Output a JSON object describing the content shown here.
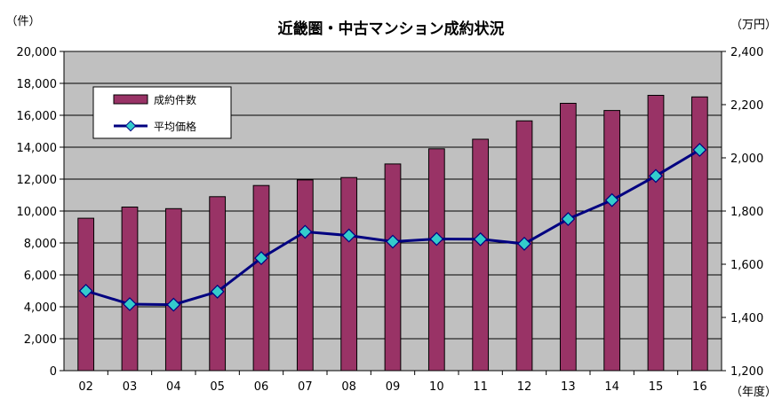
{
  "chart_data": {
    "type": "bar+line",
    "title": "近畿圏・中古マンション成約状況",
    "left_unit": "（件）",
    "right_unit": "（万円）",
    "x_unit": "（年度）",
    "categories": [
      "02",
      "03",
      "04",
      "05",
      "06",
      "07",
      "08",
      "09",
      "10",
      "11",
      "12",
      "13",
      "14",
      "15",
      "16"
    ],
    "series": [
      {
        "name": "成約件数",
        "type": "bar",
        "axis": "left",
        "color": "#993366",
        "values": [
          9550,
          10250,
          10150,
          10900,
          11600,
          11950,
          12100,
          12950,
          13900,
          14500,
          15650,
          16750,
          16300,
          17250,
          17150
        ]
      },
      {
        "name": "平均価格",
        "type": "line",
        "axis": "right",
        "color": "#000080",
        "marker_color": "#33CCCC",
        "values": [
          1500,
          1450,
          1448,
          1497,
          1623,
          1722,
          1708,
          1685,
          1695,
          1694,
          1677,
          1770,
          1841,
          1932,
          2030
        ]
      }
    ],
    "left_ticks": [
      "0",
      "2,000",
      "4,000",
      "6,000",
      "8,000",
      "10,000",
      "12,000",
      "14,000",
      "16,000",
      "18,000",
      "20,000"
    ],
    "right_ticks": [
      "1,200",
      "1,400",
      "1,600",
      "1,800",
      "2,000",
      "2,200",
      "2,400"
    ],
    "ylim_left": [
      0,
      20000
    ],
    "ylim_right": [
      1200,
      2400
    ],
    "grid": true,
    "plot_background": "#C0C0C0",
    "legend_position": "top-left"
  }
}
